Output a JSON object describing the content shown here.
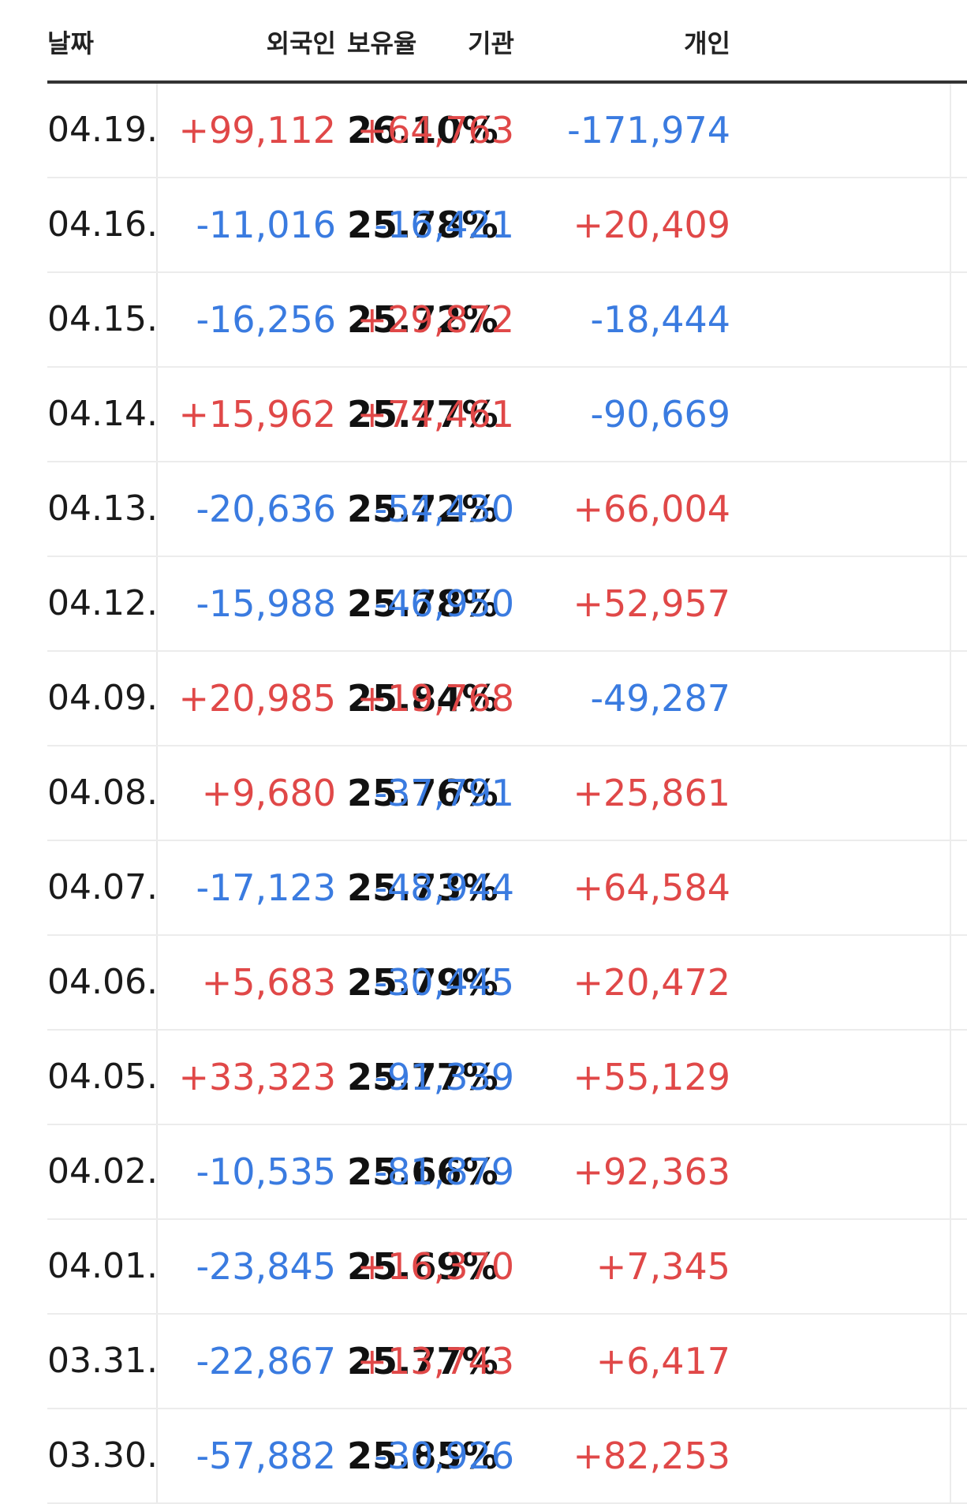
{
  "header": {
    "date": "날짜",
    "foreign": "외국인",
    "holding_ratio": "보유율",
    "institution": "기관",
    "individual": "개인"
  },
  "colors": {
    "positive": "#e04848",
    "negative": "#3a7be0",
    "header_rule": "#333333"
  },
  "rows": [
    {
      "date": "04.19.",
      "foreign": "+99,112",
      "ratio": "26.10%",
      "institution": "+64,763",
      "individual": "-171,974"
    },
    {
      "date": "04.16.",
      "foreign": "-11,016",
      "ratio": "25.78%",
      "institution": "-16,421",
      "individual": "+20,409"
    },
    {
      "date": "04.15.",
      "foreign": "-16,256",
      "ratio": "25.72%",
      "institution": "+29,872",
      "individual": "-18,444"
    },
    {
      "date": "04.14.",
      "foreign": "+15,962",
      "ratio": "25.77%",
      "institution": "+74,461",
      "individual": "-90,669"
    },
    {
      "date": "04.13.",
      "foreign": "-20,636",
      "ratio": "25.72%",
      "institution": "-54,430",
      "individual": "+66,004"
    },
    {
      "date": "04.12.",
      "foreign": "-15,988",
      "ratio": "25.78%",
      "institution": "-46,950",
      "individual": "+52,957"
    },
    {
      "date": "04.09.",
      "foreign": "+20,985",
      "ratio": "25.84%",
      "institution": "+19,768",
      "individual": "-49,287"
    },
    {
      "date": "04.08.",
      "foreign": "+9,680",
      "ratio": "25.76%",
      "institution": "-37,791",
      "individual": "+25,861"
    },
    {
      "date": "04.07.",
      "foreign": "-17,123",
      "ratio": "25.73%",
      "institution": "-48,944",
      "individual": "+64,584"
    },
    {
      "date": "04.06.",
      "foreign": "+5,683",
      "ratio": "25.79%",
      "institution": "-30,445",
      "individual": "+20,472"
    },
    {
      "date": "04.05.",
      "foreign": "+33,323",
      "ratio": "25.77%",
      "institution": "-91,339",
      "individual": "+55,129"
    },
    {
      "date": "04.02.",
      "foreign": "-10,535",
      "ratio": "25.66%",
      "institution": "-81,879",
      "individual": "+92,363"
    },
    {
      "date": "04.01.",
      "foreign": "-23,845",
      "ratio": "25.69%",
      "institution": "+16,370",
      "individual": "+7,345"
    },
    {
      "date": "03.31.",
      "foreign": "-22,867",
      "ratio": "25.77%",
      "institution": "+13,743",
      "individual": "+6,417"
    },
    {
      "date": "03.30.",
      "foreign": "-57,882",
      "ratio": "25.85%",
      "institution": "-30,926",
      "individual": "+82,253"
    }
  ]
}
